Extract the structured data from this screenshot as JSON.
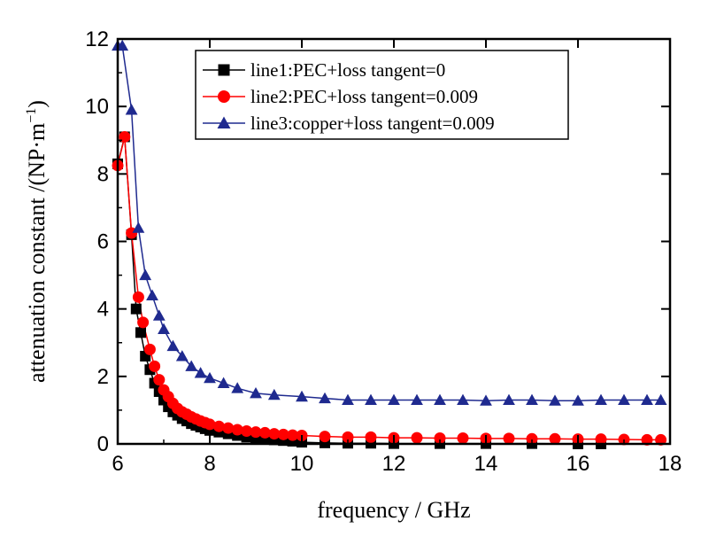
{
  "chart_data": {
    "type": "line",
    "xlabel": "frequency / GHz",
    "ylabel_main": "attenuation constant /(NP·m",
    "ylabel_sup": "−1",
    "ylabel_close": ")",
    "xlim": [
      6,
      18
    ],
    "ylim": [
      0,
      12
    ],
    "xticks": [
      6,
      8,
      10,
      12,
      14,
      16,
      18
    ],
    "yticks": [
      0,
      2,
      4,
      6,
      8,
      10,
      12
    ],
    "legend_position": "top-right",
    "series": [
      {
        "name": "line1:PEC+loss tangent=0",
        "color": "#000000",
        "marker": "square",
        "x": [
          6.0,
          6.15,
          6.3,
          6.4,
          6.5,
          6.6,
          6.7,
          6.8,
          6.9,
          7.0,
          7.1,
          7.2,
          7.3,
          7.4,
          7.5,
          7.6,
          7.7,
          7.8,
          7.9,
          8.0,
          8.2,
          8.4,
          8.6,
          8.8,
          9.0,
          9.2,
          9.4,
          9.6,
          9.8,
          10.0,
          10.5,
          11.0,
          11.5,
          12.0,
          13.0,
          14.0,
          15.0,
          16.0,
          16.5
        ],
        "y": [
          8.3,
          9.1,
          6.2,
          4.0,
          3.3,
          2.6,
          2.2,
          1.8,
          1.55,
          1.3,
          1.1,
          0.95,
          0.85,
          0.75,
          0.68,
          0.6,
          0.55,
          0.5,
          0.45,
          0.4,
          0.35,
          0.3,
          0.25,
          0.2,
          0.18,
          0.15,
          0.12,
          0.1,
          0.08,
          0.05,
          0.03,
          0.02,
          0.02,
          0.01,
          0.01,
          0.01,
          0.01,
          0.0,
          0.0
        ]
      },
      {
        "name": "line2:PEC+loss tangent=0.009",
        "color": "#ff0000",
        "marker": "circle",
        "x": [
          6.0,
          6.15,
          6.3,
          6.45,
          6.55,
          6.7,
          6.8,
          6.9,
          7.0,
          7.1,
          7.2,
          7.3,
          7.4,
          7.5,
          7.6,
          7.7,
          7.8,
          7.9,
          8.0,
          8.2,
          8.4,
          8.6,
          8.8,
          9.0,
          9.2,
          9.4,
          9.6,
          9.8,
          10.0,
          10.5,
          11.0,
          11.5,
          12.0,
          12.5,
          13.0,
          13.5,
          14.0,
          14.5,
          15.0,
          15.5,
          16.0,
          16.5,
          17.0,
          17.5,
          17.8
        ],
        "y": [
          8.25,
          9.1,
          6.25,
          4.35,
          3.6,
          2.8,
          2.3,
          1.9,
          1.6,
          1.4,
          1.2,
          1.05,
          0.95,
          0.88,
          0.8,
          0.74,
          0.68,
          0.63,
          0.58,
          0.52,
          0.47,
          0.42,
          0.38,
          0.35,
          0.33,
          0.3,
          0.28,
          0.26,
          0.25,
          0.22,
          0.2,
          0.2,
          0.18,
          0.18,
          0.17,
          0.17,
          0.16,
          0.16,
          0.15,
          0.15,
          0.14,
          0.14,
          0.13,
          0.12,
          0.12
        ]
      },
      {
        "name": "line3:copper+loss tangent=0.009",
        "color": "#1f2a8f",
        "marker": "triangle",
        "x": [
          6.0,
          6.1,
          6.3,
          6.45,
          6.6,
          6.75,
          6.9,
          7.0,
          7.2,
          7.4,
          7.6,
          7.8,
          8.0,
          8.3,
          8.6,
          9.0,
          9.4,
          10.0,
          10.5,
          11.0,
          11.5,
          12.0,
          12.5,
          13.0,
          13.5,
          14.0,
          14.5,
          15.0,
          15.5,
          16.0,
          16.5,
          17.0,
          17.5,
          17.8
        ],
        "y": [
          11.8,
          11.8,
          9.9,
          6.4,
          5.0,
          4.4,
          3.8,
          3.4,
          2.9,
          2.6,
          2.3,
          2.1,
          1.95,
          1.8,
          1.65,
          1.5,
          1.45,
          1.4,
          1.35,
          1.3,
          1.3,
          1.3,
          1.3,
          1.3,
          1.3,
          1.28,
          1.3,
          1.3,
          1.28,
          1.28,
          1.3,
          1.3,
          1.3,
          1.3
        ]
      }
    ]
  }
}
